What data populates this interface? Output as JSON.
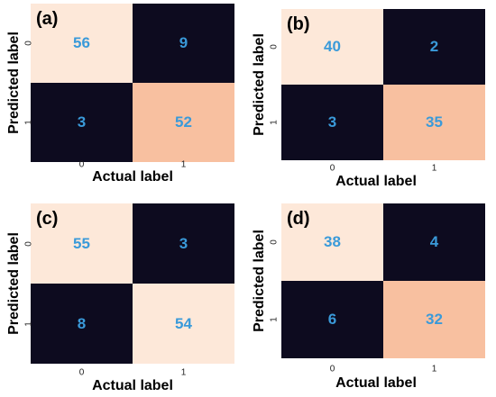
{
  "chart_data": [
    {
      "type": "heatmap",
      "panel": "(a)",
      "xlabel": "Actual label",
      "ylabel": "Predicted label",
      "x_ticks": [
        "0",
        "1"
      ],
      "y_ticks": [
        "0",
        "1"
      ],
      "values": [
        [
          56,
          9
        ],
        [
          3,
          52
        ]
      ]
    },
    {
      "type": "heatmap",
      "panel": "(b)",
      "xlabel": "Actual label",
      "ylabel": "Predicted label",
      "x_ticks": [
        "0",
        "1"
      ],
      "y_ticks": [
        "0",
        "1"
      ],
      "values": [
        [
          40,
          2
        ],
        [
          3,
          35
        ]
      ]
    },
    {
      "type": "heatmap",
      "panel": "(c)",
      "xlabel": "Actual label",
      "ylabel": "Predicted label",
      "x_ticks": [
        "0",
        "1"
      ],
      "y_ticks": [
        "0",
        "1"
      ],
      "values": [
        [
          55,
          3
        ],
        [
          8,
          54
        ]
      ]
    },
    {
      "type": "heatmap",
      "panel": "(d)",
      "xlabel": "Actual label",
      "ylabel": "Predicted label",
      "x_ticks": [
        "0",
        "1"
      ],
      "y_ticks": [
        "0",
        "1"
      ],
      "values": [
        [
          38,
          4
        ],
        [
          6,
          32
        ]
      ]
    }
  ],
  "colors": {
    "high": "#fde8d9",
    "mid": "#f8c0a0",
    "low": "#0d0b1f",
    "value_text": "#3a9ad9"
  }
}
